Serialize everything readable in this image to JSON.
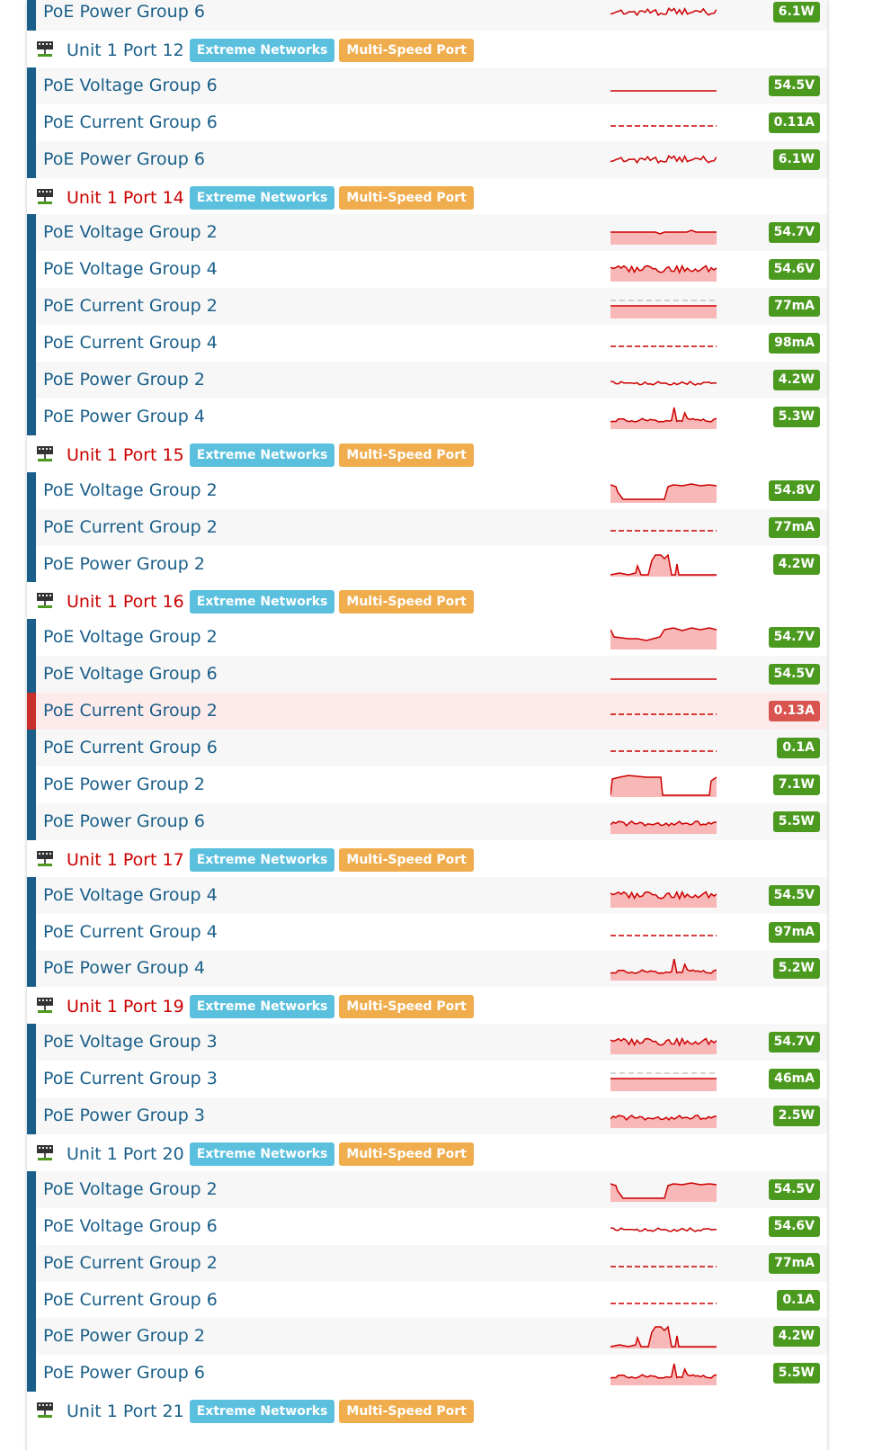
{
  "colors": {
    "link": "#1a5f8a",
    "port_down": "#cc0000",
    "ok_badge": "#4b9a1f",
    "alert_badge": "#d9534f",
    "vendor_badge": "#5bc0de",
    "speed_badge": "#f0ad4e",
    "sparkline": "#cc0000",
    "sparkline_fill": "#f9b8b8"
  },
  "icons": {
    "port": "ethernet-port-icon"
  },
  "rows": [
    {
      "type": "sensor",
      "label": "PoE Power Group 6",
      "value": "6.1W",
      "status": "ok",
      "spark": "noisy"
    },
    {
      "type": "port",
      "label": "Unit 1 Port 12",
      "vendor": "Extreme Networks",
      "speed": "Multi-Speed Port",
      "state": "up"
    },
    {
      "type": "sensor",
      "label": "PoE Voltage Group 6",
      "value": "54.5V",
      "status": "ok",
      "spark": "flat"
    },
    {
      "type": "sensor",
      "label": "PoE Current Group 6",
      "value": "0.11A",
      "status": "ok",
      "spark": "dashed"
    },
    {
      "type": "sensor",
      "label": "PoE Power Group 6",
      "value": "6.1W",
      "status": "ok",
      "spark": "noisy"
    },
    {
      "type": "port",
      "label": "Unit 1 Port 14",
      "vendor": "Extreme Networks",
      "speed": "Multi-Speed Port",
      "state": "down"
    },
    {
      "type": "sensor",
      "label": "PoE Voltage Group 2",
      "value": "54.7V",
      "status": "ok",
      "spark": "filled-flat"
    },
    {
      "type": "sensor",
      "label": "PoE Voltage Group 4",
      "value": "54.6V",
      "status": "ok",
      "spark": "filled-noisy"
    },
    {
      "type": "sensor",
      "label": "PoE Current Group 2",
      "value": "77mA",
      "status": "ok",
      "spark": "filled-band"
    },
    {
      "type": "sensor",
      "label": "PoE Current Group 4",
      "value": "98mA",
      "status": "ok",
      "spark": "dashed"
    },
    {
      "type": "sensor",
      "label": "PoE Power Group 2",
      "value": "4.2W",
      "status": "ok",
      "spark": "low-noisy"
    },
    {
      "type": "sensor",
      "label": "PoE Power Group 4",
      "value": "5.3W",
      "status": "ok",
      "spark": "spike"
    },
    {
      "type": "port",
      "label": "Unit 1 Port 15",
      "vendor": "Extreme Networks",
      "speed": "Multi-Speed Port",
      "state": "down"
    },
    {
      "type": "sensor",
      "label": "PoE Voltage Group 2",
      "value": "54.8V",
      "status": "ok",
      "spark": "dip"
    },
    {
      "type": "sensor",
      "label": "PoE Current Group 2",
      "value": "77mA",
      "status": "ok",
      "spark": "dashed"
    },
    {
      "type": "sensor",
      "label": "PoE Power Group 2",
      "value": "4.2W",
      "status": "ok",
      "spark": "bursts"
    },
    {
      "type": "port",
      "label": "Unit 1 Port 16",
      "vendor": "Extreme Networks",
      "speed": "Multi-Speed Port",
      "state": "down"
    },
    {
      "type": "sensor",
      "label": "PoE Voltage Group 2",
      "value": "54.7V",
      "status": "ok",
      "spark": "dip-filled"
    },
    {
      "type": "sensor",
      "label": "PoE Voltage Group 6",
      "value": "54.5V",
      "status": "ok",
      "spark": "flat"
    },
    {
      "type": "sensor",
      "label": "PoE Current Group 2",
      "value": "0.13A",
      "status": "alert",
      "spark": "dashed"
    },
    {
      "type": "sensor",
      "label": "PoE Current Group 6",
      "value": "0.1A",
      "status": "ok",
      "spark": "dashed"
    },
    {
      "type": "sensor",
      "label": "PoE Power Group 2",
      "value": "7.1W",
      "status": "ok",
      "spark": "step"
    },
    {
      "type": "sensor",
      "label": "PoE Power Group 6",
      "value": "5.5W",
      "status": "ok",
      "spark": "filled-noisy-low"
    },
    {
      "type": "port",
      "label": "Unit 1 Port 17",
      "vendor": "Extreme Networks",
      "speed": "Multi-Speed Port",
      "state": "down"
    },
    {
      "type": "sensor",
      "label": "PoE Voltage Group 4",
      "value": "54.5V",
      "status": "ok",
      "spark": "filled-noisy"
    },
    {
      "type": "sensor",
      "label": "PoE Current Group 4",
      "value": "97mA",
      "status": "ok",
      "spark": "dashed"
    },
    {
      "type": "sensor",
      "label": "PoE Power Group 4",
      "value": "5.2W",
      "status": "ok",
      "spark": "spike"
    },
    {
      "type": "port",
      "label": "Unit 1 Port 19",
      "vendor": "Extreme Networks",
      "speed": "Multi-Speed Port",
      "state": "down"
    },
    {
      "type": "sensor",
      "label": "PoE Voltage Group 3",
      "value": "54.7V",
      "status": "ok",
      "spark": "filled-noisy"
    },
    {
      "type": "sensor",
      "label": "PoE Current Group 3",
      "value": "46mA",
      "status": "ok",
      "spark": "filled-band"
    },
    {
      "type": "sensor",
      "label": "PoE Power Group 3",
      "value": "2.5W",
      "status": "ok",
      "spark": "filled-noisy-low"
    },
    {
      "type": "port",
      "label": "Unit 1 Port 20",
      "vendor": "Extreme Networks",
      "speed": "Multi-Speed Port",
      "state": "up"
    },
    {
      "type": "sensor",
      "label": "PoE Voltage Group 2",
      "value": "54.5V",
      "status": "ok",
      "spark": "dip"
    },
    {
      "type": "sensor",
      "label": "PoE Voltage Group 6",
      "value": "54.6V",
      "status": "ok",
      "spark": "low-noisy"
    },
    {
      "type": "sensor",
      "label": "PoE Current Group 2",
      "value": "77mA",
      "status": "ok",
      "spark": "dashed"
    },
    {
      "type": "sensor",
      "label": "PoE Current Group 6",
      "value": "0.1A",
      "status": "ok",
      "spark": "dashed"
    },
    {
      "type": "sensor",
      "label": "PoE Power Group 2",
      "value": "4.2W",
      "status": "ok",
      "spark": "bursts"
    },
    {
      "type": "sensor",
      "label": "PoE Power Group 6",
      "value": "5.5W",
      "status": "ok",
      "spark": "spike"
    },
    {
      "type": "port",
      "label": "Unit 1 Port 21",
      "vendor": "Extreme Networks",
      "speed": "Multi-Speed Port",
      "state": "up"
    }
  ]
}
